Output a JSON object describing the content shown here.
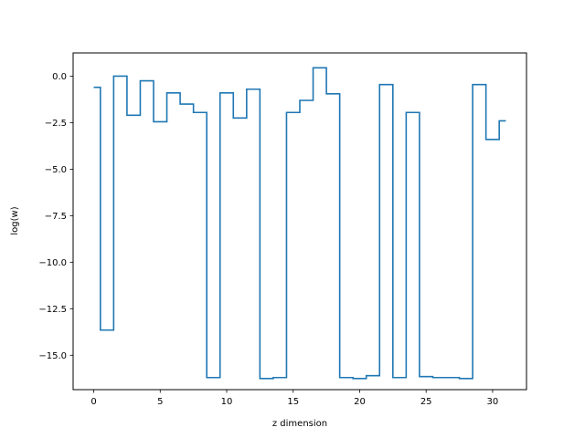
{
  "chart_data": {
    "type": "line",
    "drawstyle": "steps-post",
    "title": "",
    "xlabel": "z dimension",
    "ylabel": "log(w)",
    "xlim": [
      -1.55,
      32.55
    ],
    "ylim": [
      -16.85,
      1.25
    ],
    "xticks": [
      0,
      5,
      10,
      15,
      20,
      25,
      30
    ],
    "yticks": [
      0.0,
      -2.5,
      -5.0,
      -7.5,
      -10.0,
      -12.5,
      -15.0
    ],
    "xtick_labels": [
      "0",
      "5",
      "10",
      "15",
      "20",
      "25",
      "30"
    ],
    "ytick_labels": [
      "0.0",
      "−2.5",
      "−5.0",
      "−7.5",
      "−10.0",
      "−12.5",
      "−15.0"
    ],
    "grid": false,
    "line_color": "#1f77b4",
    "series": [
      {
        "x": [
          0,
          0.5,
          1.5,
          2.5,
          3.5,
          4.5,
          5.5,
          6.5,
          7.5,
          8.5,
          9.5,
          10.5,
          11.5,
          12.5,
          13.5,
          14.5,
          15.5,
          16.5,
          17.5,
          18.5,
          19.5,
          20.5,
          21.5,
          22.5,
          23.5,
          24.5,
          25.5,
          26.5,
          27.5,
          28.5,
          29.5,
          30.5,
          31
        ],
        "y": [
          -0.6,
          -13.65,
          0.0,
          -2.1,
          -0.25,
          -2.45,
          -0.9,
          -1.5,
          -1.95,
          -16.2,
          -0.9,
          -2.25,
          -0.7,
          -16.25,
          -16.2,
          -1.95,
          -1.3,
          0.45,
          -0.95,
          -16.2,
          -16.25,
          -16.1,
          -0.45,
          -16.2,
          -1.95,
          -16.15,
          -16.2,
          -16.2,
          -16.25,
          -0.45,
          -3.4,
          -2.4,
          -2.4
        ]
      }
    ]
  }
}
